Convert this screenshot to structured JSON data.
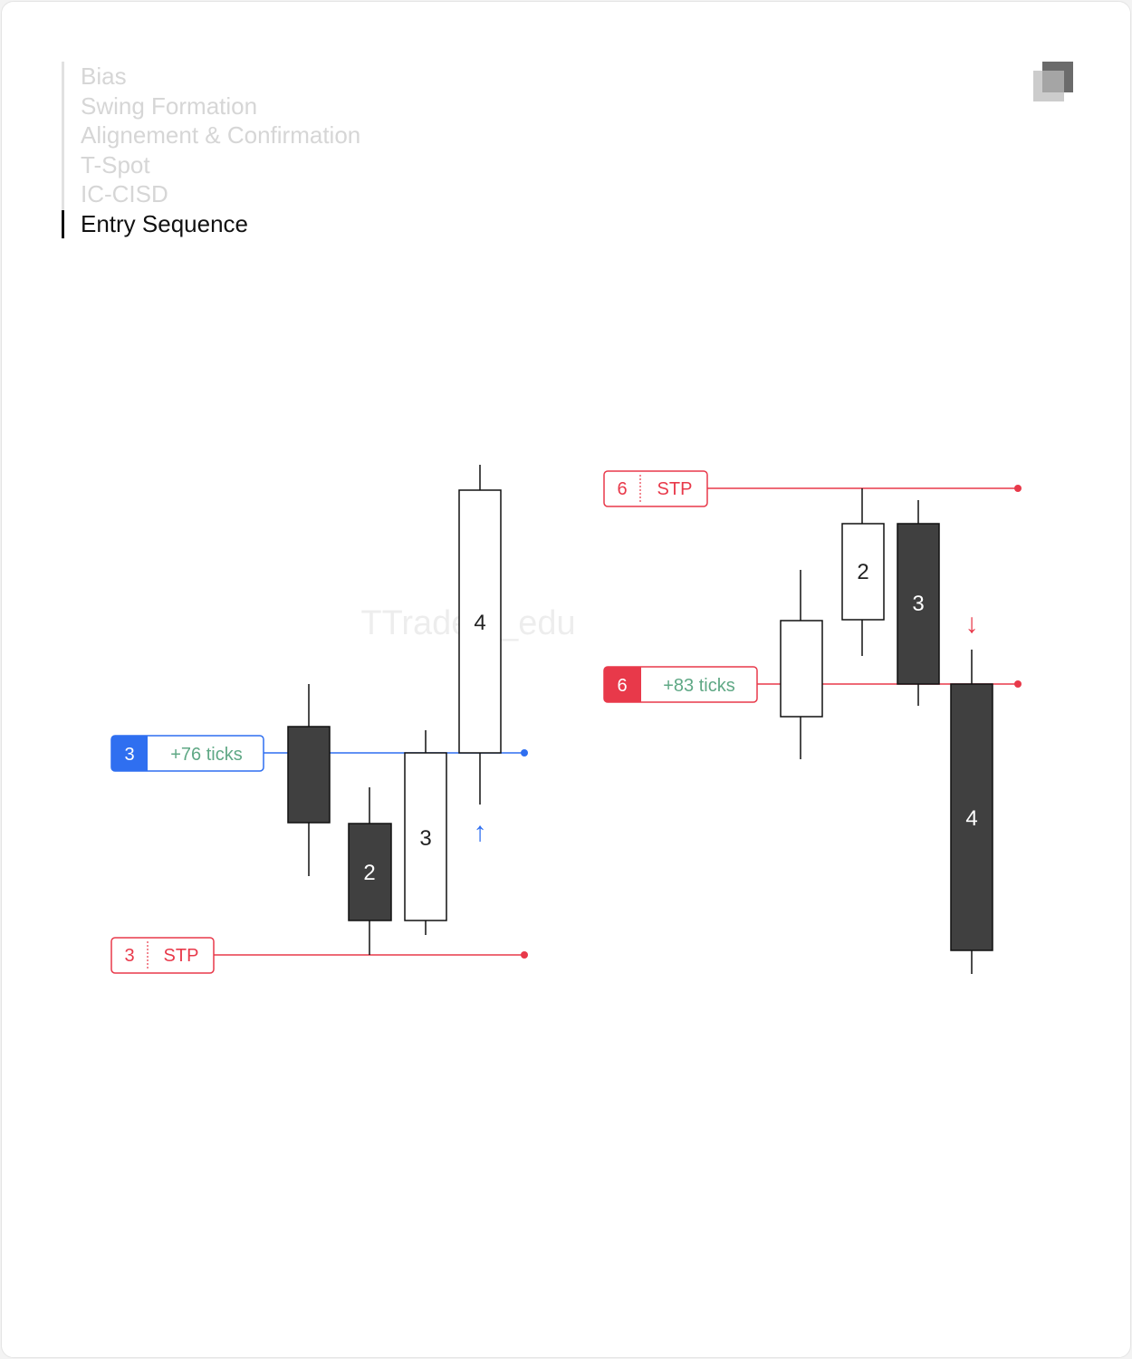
{
  "nav": {
    "items": [
      {
        "label": "Bias"
      },
      {
        "label": "Swing Formation"
      },
      {
        "label": "Alignement & Confirmation"
      },
      {
        "label": "T-Spot"
      },
      {
        "label": "IC-CISD"
      },
      {
        "label": "Entry Sequence"
      }
    ],
    "active_index": 5
  },
  "watermark": "TTraders_edu",
  "colors": {
    "bull_candle": "#ffffff",
    "bear_candle": "#404040",
    "stop_red": "#e8394a",
    "target_blue": "#2f6ff0",
    "ticks_green": "#5fa885",
    "nav_inactive": "#d6d6d6",
    "nav_active": "#111111"
  },
  "left_setup": {
    "direction_arrow": "↑",
    "arrow_icon": "arrow-up-icon",
    "candles": [
      {
        "label": "",
        "type": "bear"
      },
      {
        "label": "2",
        "type": "bear"
      },
      {
        "label": "3",
        "type": "bull"
      },
      {
        "label": "4",
        "type": "bull"
      }
    ],
    "target_tag": {
      "number": "3",
      "text": "+76 ticks"
    },
    "stop_tag": {
      "number": "3",
      "text": "STP"
    }
  },
  "right_setup": {
    "direction_arrow": "↓",
    "arrow_icon": "arrow-down-icon",
    "candles": [
      {
        "label": "",
        "type": "bull"
      },
      {
        "label": "2",
        "type": "bull"
      },
      {
        "label": "3",
        "type": "bear"
      },
      {
        "label": "4",
        "type": "bear"
      }
    ],
    "target_tag": {
      "number": "6",
      "text": "+83 ticks"
    },
    "stop_tag": {
      "number": "6",
      "text": "STP"
    }
  }
}
